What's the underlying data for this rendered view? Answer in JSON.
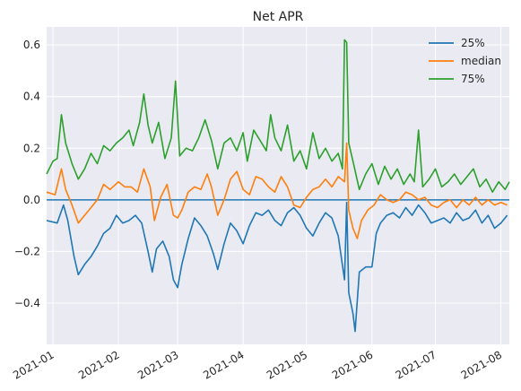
{
  "chart_data": {
    "type": "line",
    "title": "Net APR",
    "xlabel": "",
    "ylabel": "",
    "x_ticks": [
      "2021-01",
      "2021-02",
      "2021-03",
      "2021-04",
      "2021-05",
      "2021-06",
      "2021-07",
      "2021-08"
    ],
    "y_ticks": [
      "−0.4",
      "−0.2",
      "0.0",
      "0.2",
      "0.4",
      "0.6"
    ],
    "y_tick_values": [
      -0.4,
      -0.2,
      0.0,
      0.2,
      0.4,
      0.6
    ],
    "xlim": [
      "2020-12-29",
      "2021-08-05"
    ],
    "ylim": [
      -0.56,
      0.67
    ],
    "grid": true,
    "legend_position": "top-right",
    "zero_line": 0.0,
    "series": [
      {
        "name": "25%",
        "color": "#1f77b4",
        "points": [
          [
            "2020-12-29",
            -0.08
          ],
          [
            "2021-01-03",
            -0.09
          ],
          [
            "2021-01-06",
            -0.02
          ],
          [
            "2021-01-08",
            -0.08
          ],
          [
            "2021-01-11",
            -0.22
          ],
          [
            "2021-01-13",
            -0.29
          ],
          [
            "2021-01-16",
            -0.25
          ],
          [
            "2021-01-19",
            -0.22
          ],
          [
            "2021-01-22",
            -0.18
          ],
          [
            "2021-01-25",
            -0.13
          ],
          [
            "2021-01-28",
            -0.11
          ],
          [
            "2021-01-31",
            -0.06
          ],
          [
            "2021-02-03",
            -0.09
          ],
          [
            "2021-02-06",
            -0.08
          ],
          [
            "2021-02-09",
            -0.06
          ],
          [
            "2021-02-12",
            -0.09
          ],
          [
            "2021-02-15",
            -0.2
          ],
          [
            "2021-02-17",
            -0.28
          ],
          [
            "2021-02-19",
            -0.19
          ],
          [
            "2021-02-22",
            -0.16
          ],
          [
            "2021-02-25",
            -0.22
          ],
          [
            "2021-02-27",
            -0.31
          ],
          [
            "2021-03-01",
            -0.34
          ],
          [
            "2021-03-03",
            -0.25
          ],
          [
            "2021-03-06",
            -0.15
          ],
          [
            "2021-03-09",
            -0.07
          ],
          [
            "2021-03-12",
            -0.1
          ],
          [
            "2021-03-15",
            -0.14
          ],
          [
            "2021-03-18",
            -0.21
          ],
          [
            "2021-03-20",
            -0.27
          ],
          [
            "2021-03-23",
            -0.17
          ],
          [
            "2021-03-26",
            -0.09
          ],
          [
            "2021-03-29",
            -0.12
          ],
          [
            "2021-04-01",
            -0.17
          ],
          [
            "2021-04-04",
            -0.1
          ],
          [
            "2021-04-07",
            -0.05
          ],
          [
            "2021-04-10",
            -0.06
          ],
          [
            "2021-04-13",
            -0.04
          ],
          [
            "2021-04-16",
            -0.08
          ],
          [
            "2021-04-19",
            -0.1
          ],
          [
            "2021-04-22",
            -0.05
          ],
          [
            "2021-04-25",
            -0.03
          ],
          [
            "2021-04-28",
            -0.06
          ],
          [
            "2021-05-01",
            -0.11
          ],
          [
            "2021-05-04",
            -0.14
          ],
          [
            "2021-05-07",
            -0.09
          ],
          [
            "2021-05-10",
            -0.05
          ],
          [
            "2021-05-13",
            -0.07
          ],
          [
            "2021-05-16",
            -0.14
          ],
          [
            "2021-05-19",
            -0.31
          ],
          [
            "2021-05-20",
            -0.01
          ],
          [
            "2021-05-21",
            -0.36
          ],
          [
            "2021-05-23",
            -0.44
          ],
          [
            "2021-05-24",
            -0.51
          ],
          [
            "2021-05-26",
            -0.28
          ],
          [
            "2021-05-29",
            -0.26
          ],
          [
            "2021-06-01",
            -0.26
          ],
          [
            "2021-06-03",
            -0.13
          ],
          [
            "2021-06-05",
            -0.09
          ],
          [
            "2021-06-08",
            -0.06
          ],
          [
            "2021-06-11",
            -0.05
          ],
          [
            "2021-06-14",
            -0.07
          ],
          [
            "2021-06-17",
            -0.03
          ],
          [
            "2021-06-20",
            -0.06
          ],
          [
            "2021-06-23",
            -0.02
          ],
          [
            "2021-06-26",
            -0.05
          ],
          [
            "2021-06-29",
            -0.09
          ],
          [
            "2021-07-02",
            -0.08
          ],
          [
            "2021-07-05",
            -0.07
          ],
          [
            "2021-07-08",
            -0.09
          ],
          [
            "2021-07-11",
            -0.05
          ],
          [
            "2021-07-14",
            -0.08
          ],
          [
            "2021-07-17",
            -0.07
          ],
          [
            "2021-07-20",
            -0.04
          ],
          [
            "2021-07-23",
            -0.09
          ],
          [
            "2021-07-26",
            -0.06
          ],
          [
            "2021-07-29",
            -0.11
          ],
          [
            "2021-08-01",
            -0.09
          ],
          [
            "2021-08-04",
            -0.06
          ]
        ]
      },
      {
        "name": "median",
        "color": "#ff7f0e",
        "points": [
          [
            "2020-12-29",
            0.03
          ],
          [
            "2021-01-02",
            0.02
          ],
          [
            "2021-01-05",
            0.12
          ],
          [
            "2021-01-07",
            0.04
          ],
          [
            "2021-01-10",
            -0.02
          ],
          [
            "2021-01-13",
            -0.09
          ],
          [
            "2021-01-16",
            -0.06
          ],
          [
            "2021-01-19",
            -0.03
          ],
          [
            "2021-01-22",
            0.0
          ],
          [
            "2021-01-25",
            0.06
          ],
          [
            "2021-01-28",
            0.04
          ],
          [
            "2021-02-01",
            0.07
          ],
          [
            "2021-02-04",
            0.05
          ],
          [
            "2021-02-07",
            0.05
          ],
          [
            "2021-02-10",
            0.03
          ],
          [
            "2021-02-13",
            0.12
          ],
          [
            "2021-02-16",
            0.05
          ],
          [
            "2021-02-18",
            -0.08
          ],
          [
            "2021-02-21",
            0.01
          ],
          [
            "2021-02-24",
            0.06
          ],
          [
            "2021-02-27",
            -0.06
          ],
          [
            "2021-03-01",
            -0.07
          ],
          [
            "2021-03-03",
            -0.04
          ],
          [
            "2021-03-06",
            0.03
          ],
          [
            "2021-03-09",
            0.05
          ],
          [
            "2021-03-12",
            0.04
          ],
          [
            "2021-03-15",
            0.1
          ],
          [
            "2021-03-17",
            0.05
          ],
          [
            "2021-03-20",
            -0.06
          ],
          [
            "2021-03-23",
            0.0
          ],
          [
            "2021-03-26",
            0.08
          ],
          [
            "2021-03-29",
            0.11
          ],
          [
            "2021-04-01",
            0.04
          ],
          [
            "2021-04-04",
            0.02
          ],
          [
            "2021-04-07",
            0.09
          ],
          [
            "2021-04-10",
            0.08
          ],
          [
            "2021-04-13",
            0.05
          ],
          [
            "2021-04-16",
            0.03
          ],
          [
            "2021-04-19",
            0.09
          ],
          [
            "2021-04-22",
            0.05
          ],
          [
            "2021-04-25",
            -0.02
          ],
          [
            "2021-04-28",
            -0.03
          ],
          [
            "2021-05-01",
            0.01
          ],
          [
            "2021-05-04",
            0.04
          ],
          [
            "2021-05-07",
            0.05
          ],
          [
            "2021-05-10",
            0.08
          ],
          [
            "2021-05-13",
            0.05
          ],
          [
            "2021-05-16",
            0.09
          ],
          [
            "2021-05-19",
            0.07
          ],
          [
            "2021-05-20",
            0.22
          ],
          [
            "2021-05-21",
            -0.04
          ],
          [
            "2021-05-23",
            -0.11
          ],
          [
            "2021-05-25",
            -0.15
          ],
          [
            "2021-05-27",
            -0.08
          ],
          [
            "2021-05-30",
            -0.04
          ],
          [
            "2021-06-02",
            -0.02
          ],
          [
            "2021-06-05",
            0.02
          ],
          [
            "2021-06-08",
            0.0
          ],
          [
            "2021-06-11",
            -0.01
          ],
          [
            "2021-06-14",
            0.0
          ],
          [
            "2021-06-17",
            0.03
          ],
          [
            "2021-06-20",
            0.02
          ],
          [
            "2021-06-23",
            0.0
          ],
          [
            "2021-06-26",
            0.01
          ],
          [
            "2021-06-29",
            -0.02
          ],
          [
            "2021-07-02",
            -0.03
          ],
          [
            "2021-07-05",
            -0.01
          ],
          [
            "2021-07-08",
            0.0
          ],
          [
            "2021-07-11",
            -0.03
          ],
          [
            "2021-07-14",
            0.0
          ],
          [
            "2021-07-17",
            -0.02
          ],
          [
            "2021-07-20",
            0.01
          ],
          [
            "2021-07-23",
            -0.02
          ],
          [
            "2021-07-26",
            0.0
          ],
          [
            "2021-07-29",
            -0.02
          ],
          [
            "2021-08-01",
            -0.01
          ],
          [
            "2021-08-04",
            -0.02
          ]
        ]
      },
      {
        "name": "75%",
        "color": "#2ca02c",
        "points": [
          [
            "2020-12-29",
            0.1
          ],
          [
            "2021-01-01",
            0.15
          ],
          [
            "2021-01-03",
            0.16
          ],
          [
            "2021-01-05",
            0.33
          ],
          [
            "2021-01-07",
            0.22
          ],
          [
            "2021-01-10",
            0.14
          ],
          [
            "2021-01-13",
            0.08
          ],
          [
            "2021-01-16",
            0.12
          ],
          [
            "2021-01-19",
            0.18
          ],
          [
            "2021-01-22",
            0.14
          ],
          [
            "2021-01-25",
            0.21
          ],
          [
            "2021-01-28",
            0.19
          ],
          [
            "2021-01-31",
            0.22
          ],
          [
            "2021-02-03",
            0.24
          ],
          [
            "2021-02-06",
            0.27
          ],
          [
            "2021-02-08",
            0.21
          ],
          [
            "2021-02-11",
            0.3
          ],
          [
            "2021-02-13",
            0.41
          ],
          [
            "2021-02-15",
            0.29
          ],
          [
            "2021-02-17",
            0.22
          ],
          [
            "2021-02-20",
            0.3
          ],
          [
            "2021-02-23",
            0.16
          ],
          [
            "2021-02-26",
            0.24
          ],
          [
            "2021-02-28",
            0.46
          ],
          [
            "2021-03-02",
            0.17
          ],
          [
            "2021-03-05",
            0.2
          ],
          [
            "2021-03-08",
            0.19
          ],
          [
            "2021-03-11",
            0.24
          ],
          [
            "2021-03-14",
            0.31
          ],
          [
            "2021-03-17",
            0.23
          ],
          [
            "2021-03-20",
            0.12
          ],
          [
            "2021-03-23",
            0.22
          ],
          [
            "2021-03-26",
            0.24
          ],
          [
            "2021-03-29",
            0.19
          ],
          [
            "2021-04-01",
            0.26
          ],
          [
            "2021-04-03",
            0.15
          ],
          [
            "2021-04-06",
            0.27
          ],
          [
            "2021-04-09",
            0.23
          ],
          [
            "2021-04-12",
            0.19
          ],
          [
            "2021-04-14",
            0.33
          ],
          [
            "2021-04-16",
            0.24
          ],
          [
            "2021-04-19",
            0.19
          ],
          [
            "2021-04-22",
            0.29
          ],
          [
            "2021-04-25",
            0.15
          ],
          [
            "2021-04-28",
            0.19
          ],
          [
            "2021-05-01",
            0.12
          ],
          [
            "2021-05-04",
            0.26
          ],
          [
            "2021-05-07",
            0.16
          ],
          [
            "2021-05-10",
            0.2
          ],
          [
            "2021-05-13",
            0.15
          ],
          [
            "2021-05-16",
            0.18
          ],
          [
            "2021-05-18",
            0.12
          ],
          [
            "2021-05-19",
            0.62
          ],
          [
            "2021-05-20",
            0.61
          ],
          [
            "2021-05-21",
            0.22
          ],
          [
            "2021-05-23",
            0.15
          ],
          [
            "2021-05-26",
            0.04
          ],
          [
            "2021-05-29",
            0.1
          ],
          [
            "2021-06-01",
            0.14
          ],
          [
            "2021-06-04",
            0.06
          ],
          [
            "2021-06-07",
            0.13
          ],
          [
            "2021-06-10",
            0.08
          ],
          [
            "2021-06-13",
            0.12
          ],
          [
            "2021-06-16",
            0.06
          ],
          [
            "2021-06-19",
            0.1
          ],
          [
            "2021-06-21",
            0.07
          ],
          [
            "2021-06-23",
            0.27
          ],
          [
            "2021-06-25",
            0.05
          ],
          [
            "2021-06-28",
            0.08
          ],
          [
            "2021-07-01",
            0.12
          ],
          [
            "2021-07-04",
            0.05
          ],
          [
            "2021-07-07",
            0.07
          ],
          [
            "2021-07-10",
            0.1
          ],
          [
            "2021-07-13",
            0.06
          ],
          [
            "2021-07-16",
            0.09
          ],
          [
            "2021-07-19",
            0.12
          ],
          [
            "2021-07-22",
            0.05
          ],
          [
            "2021-07-25",
            0.08
          ],
          [
            "2021-07-28",
            0.03
          ],
          [
            "2021-07-31",
            0.07
          ],
          [
            "2021-08-03",
            0.04
          ],
          [
            "2021-08-05",
            0.07
          ]
        ]
      }
    ]
  }
}
